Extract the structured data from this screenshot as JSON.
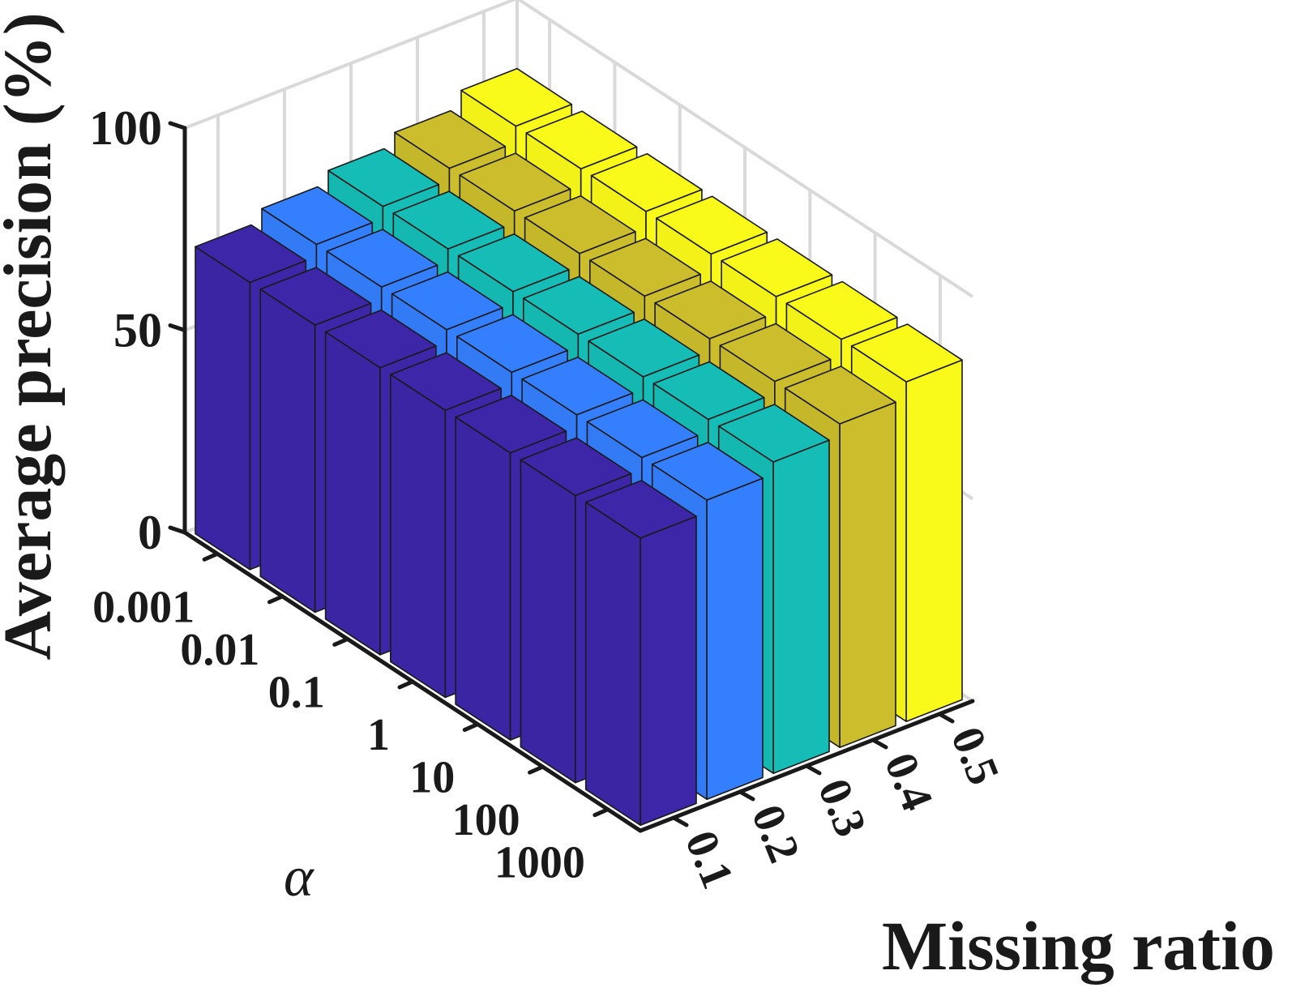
{
  "chart_data": {
    "type": "bar3d",
    "title": "",
    "zlabel": "Average precision (%)",
    "xlabel": "Missing ratio",
    "ylabel": "α",
    "alpha_ticks": [
      "0.001",
      "0.01",
      "0.1",
      "1",
      "10",
      "100",
      "1000"
    ],
    "ratio_ticks": [
      "0.1",
      "0.2",
      "0.3",
      "0.4",
      "0.5"
    ],
    "z_ticks": [
      "0",
      "50",
      "100"
    ],
    "zlim": [
      0,
      100
    ],
    "grid": true,
    "series": [
      {
        "ratio": "0.1",
        "color": "#3d26a8",
        "values": [
          71,
          71,
          71,
          71,
          71,
          71,
          71
        ]
      },
      {
        "ratio": "0.2",
        "color": "#347ffd",
        "values": [
          74,
          74,
          74,
          74,
          74,
          74,
          74
        ]
      },
      {
        "ratio": "0.3",
        "color": "#16bdb6",
        "values": [
          77,
          77,
          77,
          77,
          77,
          77,
          77
        ]
      },
      {
        "ratio": "0.4",
        "color": "#cbbd2b",
        "values": [
          80,
          80,
          80,
          80,
          80,
          80,
          80
        ]
      },
      {
        "ratio": "0.5",
        "color": "#f9f91a",
        "values": [
          84,
          84,
          84,
          84,
          84,
          84,
          84
        ]
      }
    ]
  }
}
